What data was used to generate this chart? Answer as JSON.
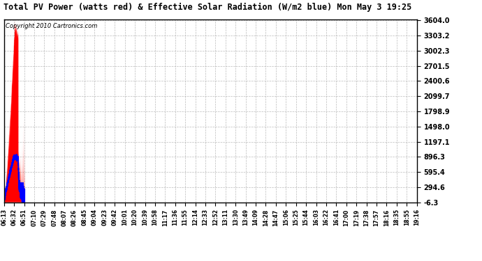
{
  "title": "Total PV Power (watts red) & Effective Solar Radiation (W/m2 blue) Mon May 3 19:25",
  "copyright": "Copyright 2010 Cartronics.com",
  "yticks": [
    3604.0,
    3303.2,
    3002.3,
    2701.5,
    2400.6,
    2099.7,
    1798.9,
    1498.0,
    1197.1,
    896.3,
    595.4,
    294.6,
    -6.3
  ],
  "ymin": -6.3,
  "ymax": 3604.0,
  "x_labels": [
    "06:13",
    "06:32",
    "06:51",
    "07:10",
    "07:29",
    "07:48",
    "08:07",
    "08:26",
    "08:45",
    "09:04",
    "09:23",
    "09:42",
    "10:01",
    "10:20",
    "10:39",
    "10:58",
    "11:17",
    "11:36",
    "11:55",
    "12:14",
    "12:33",
    "12:52",
    "13:11",
    "13:30",
    "13:49",
    "14:09",
    "14:28",
    "14:47",
    "15:06",
    "15:25",
    "15:44",
    "16:03",
    "16:22",
    "16:41",
    "17:00",
    "17:19",
    "17:38",
    "17:57",
    "18:16",
    "18:35",
    "18:55",
    "19:16"
  ],
  "bg_color": "#ffffff",
  "red_color": "#ff0000",
  "blue_color": "#0000ff",
  "grid_color": "#aaaaaa"
}
